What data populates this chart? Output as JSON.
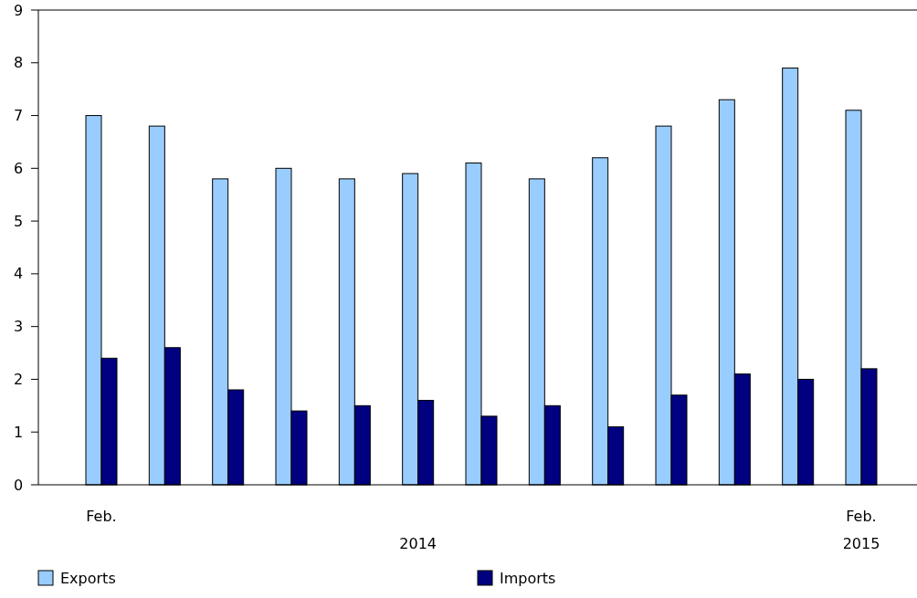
{
  "chart_data": {
    "type": "bar",
    "categories": [
      "Feb.",
      null,
      null,
      null,
      null,
      null,
      null,
      null,
      null,
      null,
      null,
      null,
      "Feb.\n2015"
    ],
    "series": [
      {
        "name": "Exports",
        "color": "#99ccff",
        "values": [
          7.0,
          6.8,
          5.8,
          6.0,
          5.8,
          5.9,
          6.1,
          5.8,
          6.2,
          6.8,
          7.3,
          7.9,
          7.1
        ]
      },
      {
        "name": "Imports",
        "color": "#000080",
        "values": [
          2.4,
          2.6,
          1.8,
          1.4,
          1.5,
          1.6,
          1.3,
          1.5,
          1.1,
          1.7,
          2.1,
          2.0,
          2.2
        ]
      }
    ],
    "ylim": [
      0,
      9
    ],
    "yticks": [
      0,
      1,
      2,
      3,
      4,
      5,
      6,
      7,
      8,
      9
    ],
    "grid": false,
    "legend": "bottom",
    "annotations": [
      "2014"
    ]
  }
}
